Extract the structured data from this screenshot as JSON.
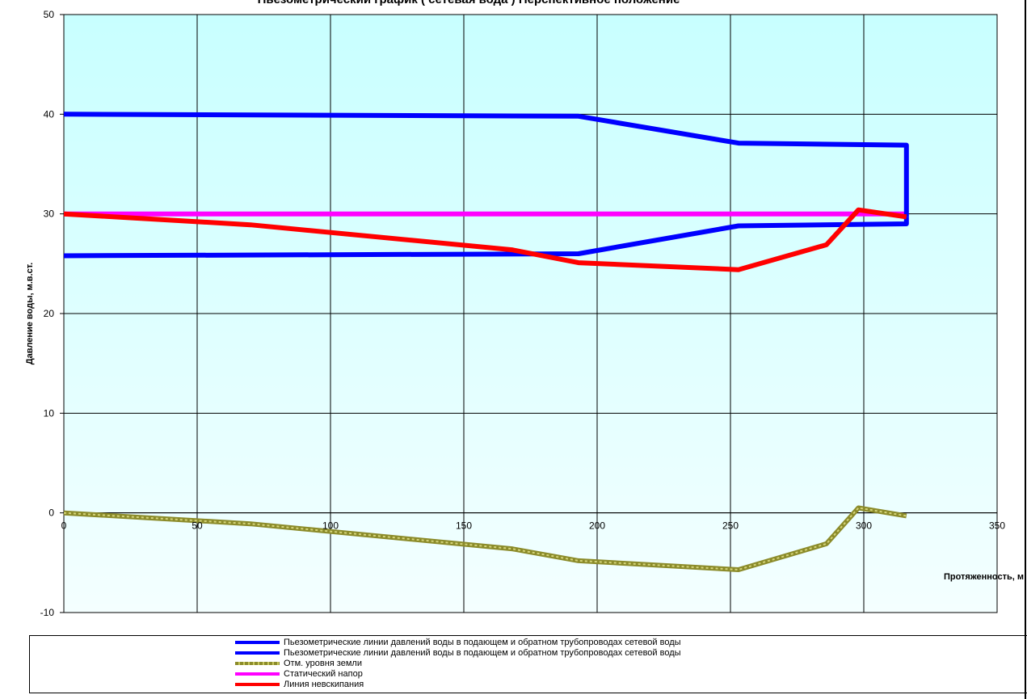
{
  "chart_data": {
    "type": "line",
    "title": "Пьезометрический график  ( сетевая вода ) Перспективное положение",
    "xlabel": "Протяженность, м",
    "ylabel": "Давление воды, м.в.ст.",
    "xlim": [
      0,
      350
    ],
    "ylim": [
      -10,
      50
    ],
    "x_ticks": [
      "0",
      "50",
      "100",
      "150",
      "200",
      "250",
      "300",
      "350"
    ],
    "y_ticks": [
      "-10",
      "0",
      "10",
      "20",
      "30",
      "40",
      "50"
    ],
    "grid": true,
    "legend_position": "bottom",
    "series": [
      {
        "name": "Пьезометрические линии давлений воды в подающем и обратном трубопроводах сетевой воды",
        "color": "#0000FF",
        "x": [
          0,
          193,
          253,
          316,
          316
        ],
        "y": [
          40,
          39.8,
          37.1,
          36.9,
          29.7
        ]
      },
      {
        "name": "Пьезометрические линии давлений воды в подающем и обратном трубопроводах сетевой воды",
        "color": "#0000FF",
        "x": [
          0,
          193,
          253,
          316,
          316
        ],
        "y": [
          25.8,
          26.0,
          28.8,
          29.0,
          29.7
        ]
      },
      {
        "name": "Отм. уровня земли",
        "color": "#8B8B2A",
        "dashed": true,
        "x": [
          0,
          70,
          168,
          193,
          253,
          286,
          298,
          316
        ],
        "y": [
          0,
          -1.1,
          -3.6,
          -4.8,
          -5.7,
          -3.1,
          0.5,
          -0.3
        ]
      },
      {
        "name": "Статический напор",
        "color": "#FF00FF",
        "x": [
          0,
          316
        ],
        "y": [
          30,
          30
        ]
      },
      {
        "name": "Линия невскипания",
        "color": "#FF0000",
        "x": [
          0,
          70,
          168,
          193,
          253,
          286,
          298,
          316
        ],
        "y": [
          30,
          28.9,
          26.4,
          25.1,
          24.4,
          26.9,
          30.4,
          29.7
        ]
      }
    ]
  }
}
